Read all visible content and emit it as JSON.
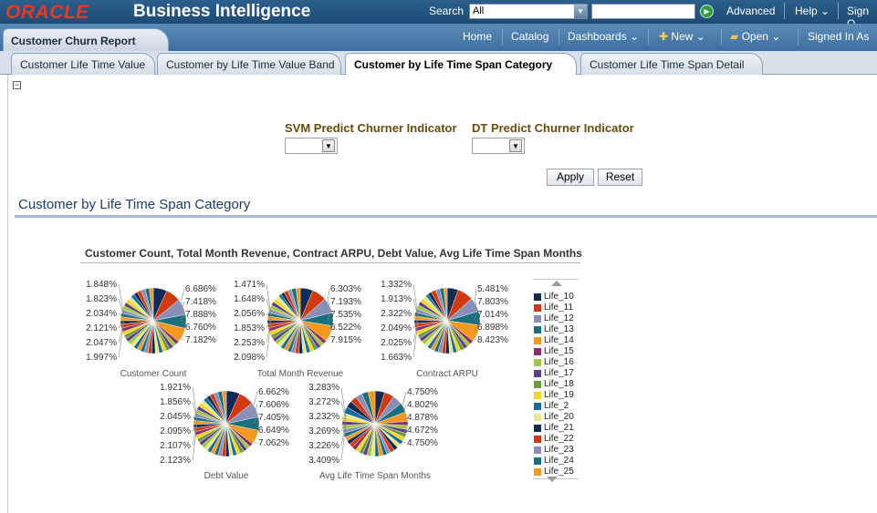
{
  "header": {
    "logo": "ORACLE",
    "product": "Business Intelligence",
    "search_label": "Search",
    "search_scope": "All",
    "links": [
      "Advanced",
      "Help",
      "Sign O"
    ]
  },
  "nav": {
    "report_tab": "Customer Churn Report",
    "links": [
      "Home",
      "Catalog",
      "Dashboards",
      "New",
      "Open",
      "Signed In As"
    ]
  },
  "tabs": [
    "Customer Life Time Value",
    "Customer by Life Time Value Band",
    "Customer by Life Time Span Category",
    "Customer Life Time Span Detail"
  ],
  "active_tab": 2,
  "prompts": {
    "svm_label": "SVM Predict Churner Indicator",
    "dt_label": "DT Predict Churner Indicator",
    "apply": "Apply",
    "reset": "Reset"
  },
  "section_title": "Customer by Life Time Span Category",
  "chart_data": {
    "type": "pie",
    "title": "Customer Count, Total Month Revenue, Contract ARPU, Debt Value, Avg Life Time Span Months",
    "legend": [
      "Life_10",
      "Life_11",
      "Life_12",
      "Life_13",
      "Life_14",
      "Life_15",
      "Life_16",
      "Life_17",
      "Life_18",
      "Life_19",
      "Life_2",
      "Life_20",
      "Life_21",
      "Life_22",
      "Life_23",
      "Life_24",
      "Life_25"
    ],
    "legend_colors": [
      "#0e2a57",
      "#d4380d",
      "#8a8fb8",
      "#1a6f7e",
      "#f5981e",
      "#8b2c6b",
      "#9ccb3b",
      "#5f3c8c",
      "#6a9a3a",
      "#f7d51c",
      "#136c9a",
      "#e7e78c",
      "#0e2a57",
      "#d4380d",
      "#8a8fb8",
      "#1a6f7e",
      "#f5981e"
    ],
    "pies": [
      {
        "name": "Customer Count",
        "left_labels": [
          "1.848%",
          "1.823%",
          "2.034%",
          "2.121%",
          "2.047%",
          "1.997%"
        ],
        "right_labels": [
          "6.686%",
          "7.418%",
          "7.888%",
          "6.760%",
          "7.182%"
        ]
      },
      {
        "name": "Total Month Revenue",
        "left_labels": [
          "1.471%",
          "1.648%",
          "2.056%",
          "1.853%",
          "2.253%",
          "2.098%"
        ],
        "right_labels": [
          "6.303%",
          "7.193%",
          "7.535%",
          "6.522%",
          "7.915%"
        ]
      },
      {
        "name": "Contract ARPU",
        "left_labels": [
          "1.332%",
          "1.913%",
          "2.322%",
          "2.049%",
          "2.025%",
          "1.663%"
        ],
        "right_labels": [
          "5.481%",
          "7.803%",
          "7.014%",
          "6.898%",
          "8.423%"
        ]
      },
      {
        "name": "Debt Value",
        "left_labels": [
          "1.921%",
          "1.856%",
          "2.045%",
          "2.095%",
          "2.107%",
          "2.123%"
        ],
        "right_labels": [
          "6.662%",
          "7.606%",
          "7.405%",
          "6.649%",
          "7.062%"
        ]
      },
      {
        "name": "Avg Life Time Span Months",
        "left_labels": [
          "3.283%",
          "3.272%",
          "3.232%",
          "3.269%",
          "3.226%",
          "3.409%"
        ],
        "right_labels": [
          "4.750%",
          "4.802%",
          "4.878%",
          "4.672%",
          "4.750%"
        ]
      }
    ]
  }
}
